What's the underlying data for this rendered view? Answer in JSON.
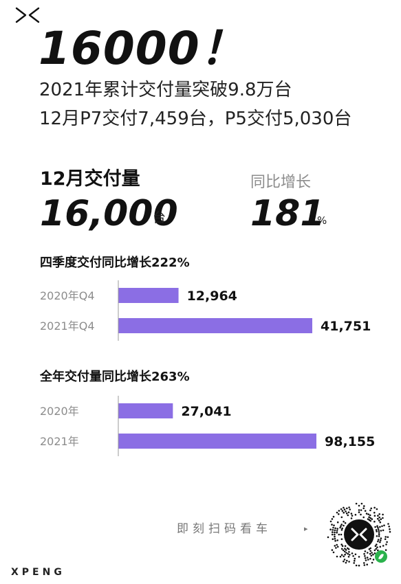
{
  "headline": "16000！",
  "subheadline_1": "2021年累计交付量突破9.8万台",
  "subheadline_2": "12月P7交付7,459台，P5交付5,030台",
  "december": {
    "label": "12月交付量",
    "value": "16,000",
    "unit": "台"
  },
  "yoy": {
    "label": "同比增长",
    "value": "181",
    "unit": "%"
  },
  "colors": {
    "bar": "#8b6ee4",
    "text": "#111111",
    "muted": "#8c8c8c"
  },
  "chart_data": [
    {
      "type": "bar",
      "orientation": "horizontal",
      "title": "四季度交付同比增长222%",
      "categories": [
        "2020年Q4",
        "2021年Q4"
      ],
      "values": [
        12964,
        41751
      ],
      "value_labels": [
        "12,964",
        "41,751"
      ]
    },
    {
      "type": "bar",
      "orientation": "horizontal",
      "title": "全年交付量同比增长263%",
      "categories": [
        "2020年",
        "2021年"
      ],
      "values": [
        27041,
        98155
      ],
      "value_labels": [
        "27,041",
        "98,155"
      ]
    }
  ],
  "cta": {
    "text": "即刻扫码看车",
    "arrow": "▸",
    "qr_icon": "qr-code-icon"
  },
  "brand": "XPENG",
  "top_logo_icon": "xpeng-logo-icon"
}
